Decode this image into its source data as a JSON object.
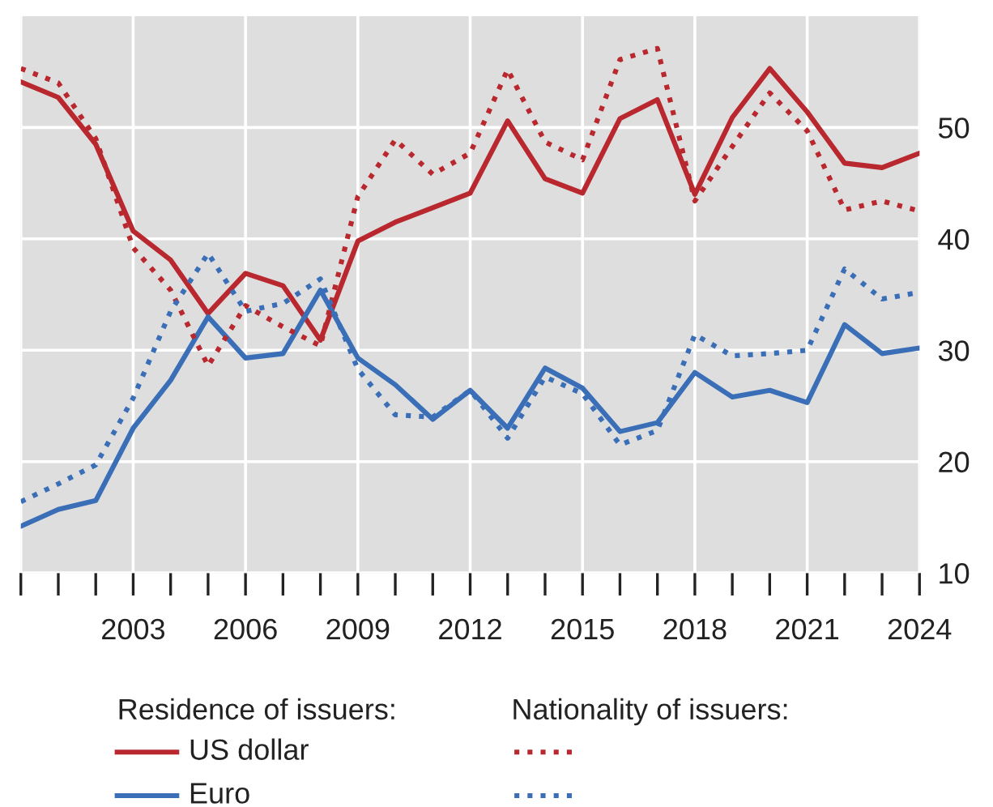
{
  "chart_data": {
    "type": "line",
    "x": [
      2000,
      2001,
      2002,
      2003,
      2004,
      2005,
      2006,
      2007,
      2008,
      2009,
      2010,
      2011,
      2012,
      2013,
      2014,
      2015,
      2016,
      2017,
      2018,
      2019,
      2020,
      2021,
      2022,
      2023,
      2024
    ],
    "series": [
      {
        "name": "US dollar",
        "color": "#b8282e",
        "line_style": "solid",
        "values": [
          54.1,
          52.7,
          48.5,
          40.7,
          38.1,
          33.3,
          36.9,
          35.8,
          30.9,
          39.8,
          41.5,
          42.8,
          44.1,
          50.6,
          45.4,
          44.1,
          50.8,
          52.5,
          44.0,
          50.9,
          55.3,
          51.4,
          46.8,
          46.4,
          47.7
        ]
      },
      {
        "name": "Euro",
        "color": "#3a6fb8",
        "line_style": "solid",
        "values": [
          14.2,
          15.7,
          16.5,
          23.0,
          27.3,
          33.0,
          29.3,
          29.7,
          35.4,
          29.3,
          26.9,
          23.8,
          26.4,
          23.0,
          28.4,
          26.6,
          22.7,
          23.5,
          28.0,
          25.8,
          26.4,
          25.3,
          32.3,
          29.7,
          30.2
        ]
      },
      {
        "color": "#b8282e",
        "line_style": "dotted",
        "values": [
          55.3,
          54.0,
          49.0,
          39.2,
          35.4,
          28.6,
          34.0,
          32.1,
          30.4,
          43.8,
          48.9,
          45.8,
          47.7,
          55.2,
          48.7,
          47.1,
          56.1,
          57.1,
          43.4,
          48.3,
          53.1,
          49.7,
          42.6,
          43.4,
          42.5
        ]
      },
      {
        "color": "#3a6fb8",
        "line_style": "dotted",
        "values": [
          16.4,
          18.0,
          19.7,
          25.7,
          33.5,
          38.7,
          33.5,
          34.2,
          36.4,
          28.3,
          24.2,
          24.0,
          26.4,
          22.1,
          27.6,
          26.1,
          21.5,
          22.8,
          31.4,
          29.5,
          29.7,
          30.0,
          37.3,
          34.6,
          35.2
        ]
      }
    ],
    "xlim": [
      2000,
      2024
    ],
    "xticks": [
      {
        "value": 2000,
        "label": null
      },
      {
        "value": 2001,
        "label": null
      },
      {
        "value": 2002,
        "label": null
      },
      2003,
      {
        "value": 2004,
        "label": null
      },
      {
        "value": 2005,
        "label": null
      },
      2006,
      {
        "value": 2007,
        "label": null
      },
      {
        "value": 2008,
        "label": null
      },
      2009,
      {
        "value": 2010,
        "label": null
      },
      {
        "value": 2011,
        "label": null
      },
      2012,
      {
        "value": 2013,
        "label": null
      },
      {
        "value": 2014,
        "label": null
      },
      2015,
      {
        "value": 2016,
        "label": null
      },
      {
        "value": 2017,
        "label": null
      },
      2018,
      {
        "value": 2019,
        "label": null
      },
      {
        "value": 2020,
        "label": null
      },
      2021,
      {
        "value": 2022,
        "label": null
      },
      {
        "value": 2023,
        "label": null
      },
      2024
    ],
    "ylim": [
      10,
      60
    ],
    "yticks": [
      10,
      20,
      30,
      40,
      50
    ],
    "grid": true,
    "legend": "bottom",
    "annotations": [
      "Residence of issuers:",
      "Nationality of issuers:"
    ]
  }
}
